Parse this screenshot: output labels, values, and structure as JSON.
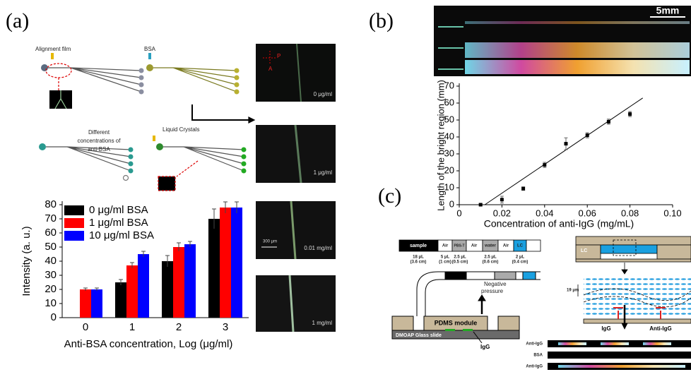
{
  "chart_data": [
    {
      "type": "bar",
      "x_label": "Anti-BSA concentration, Log (μg/ml)",
      "y_label": "Intensity (a. u.)",
      "categories": [
        "0",
        "1",
        "2",
        "3"
      ],
      "series": [
        {
          "name": "0 μg/ml BSA",
          "color": "#000000",
          "values": [
            null,
            25,
            40,
            70
          ],
          "errors": [
            null,
            2,
            4,
            7
          ]
        },
        {
          "name": "1 μg/ml BSA",
          "color": "#ff0000",
          "values": [
            20,
            37,
            50,
            78
          ],
          "errors": [
            1,
            2,
            3,
            4
          ]
        },
        {
          "name": "10 μg/ml BSA",
          "color": "#0000ff",
          "values": [
            20,
            45,
            52,
            78
          ],
          "errors": [
            1,
            2,
            2,
            4
          ]
        }
      ],
      "ylim": [
        0,
        80
      ],
      "yticks": [
        0,
        10,
        20,
        30,
        40,
        50,
        60,
        70,
        80
      ],
      "legend": "upper-left"
    },
    {
      "type": "scatter",
      "x_label": "Concentration of anti-IgG (mg/mL)",
      "y_label": "Length of the bright region (mm)",
      "x": [
        0.01,
        0.02,
        0.03,
        0.04,
        0.05,
        0.06,
        0.07,
        0.08
      ],
      "values": [
        0,
        3,
        9.5,
        23.5,
        36,
        41,
        49,
        53.5
      ],
      "errors": [
        0.5,
        2,
        1,
        1.5,
        3.5,
        1.5,
        1.5,
        1.5
      ],
      "color": "#000000",
      "fit_line": {
        "x": [
          0.012,
          0.086
        ],
        "y": [
          0,
          63
        ]
      },
      "xlim": [
        0,
        0.1
      ],
      "xticks": [
        0,
        0.02,
        0.04,
        0.06,
        0.08,
        {
          "value": 0.1,
          "label": "0.10"
        }
      ],
      "ylim": [
        0,
        70
      ],
      "yticks": [
        0,
        10,
        20,
        30,
        40,
        50,
        60,
        70
      ]
    }
  ],
  "figure": {
    "panel_labels": [
      "(a)",
      "(b)",
      "(c)"
    ],
    "a": {
      "alignment_film": "Alignment film",
      "bsa": "BSA",
      "different": [
        "Different",
        "concentrations of",
        "anti-BSA"
      ],
      "liquid_crystals": "Liquid Crystals",
      "images": [
        "0 μg/ml",
        "1 μg/ml",
        "0.01 mg/ml",
        "1 mg/ml"
      ],
      "scale_bar": "300 μm",
      "polarizer": "P",
      "analyzer": "A"
    },
    "b": {
      "scale_bar": "5mm"
    },
    "c": {
      "tube": [
        "sample",
        "Air",
        "PBS-T",
        "Air",
        "water",
        "Air",
        "LC"
      ],
      "volumes": [
        [
          "18 μL",
          "(3.6 cm)"
        ],
        [
          "5 μL",
          "(1 cm)"
        ],
        [
          "2.5 μL",
          "(0.5 cm)"
        ],
        [
          "2.5 μL",
          "(0.6 cm)"
        ],
        [
          "2 μL",
          "(0.4 cm)"
        ]
      ],
      "negative_pressure": [
        "Negative",
        "pressure"
      ],
      "pdms": "PDMS module",
      "glass": "DMOAP Glass slide",
      "igg_left": "IgG",
      "lc_right": "LC",
      "gap": "19 μm",
      "igg_right": "IgG",
      "anti_igg": "Anti-IgG",
      "strips": [
        "Anti-IgG",
        "BSA",
        "Anti-IgG"
      ]
    }
  }
}
